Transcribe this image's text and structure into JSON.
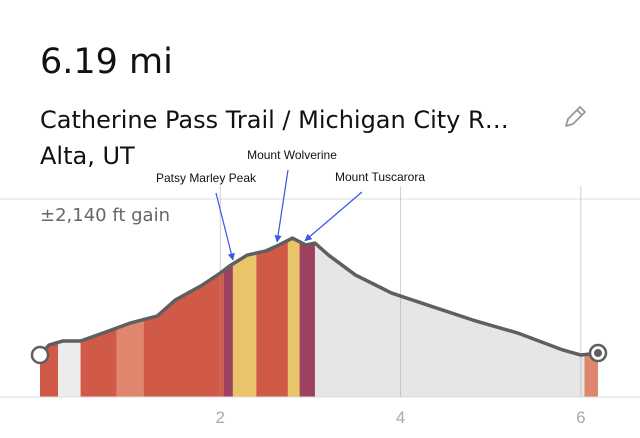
{
  "header": {
    "distance": "6.19 mi",
    "title": "Catherine Pass Trail / Michigan City R…",
    "location": "Alta, UT",
    "gain": "±2,140 ft gain"
  },
  "chart_data": {
    "type": "area",
    "x": [
      0,
      0.1,
      0.25,
      0.45,
      0.7,
      1.0,
      1.3,
      1.5,
      1.8,
      2.0,
      2.1,
      2.3,
      2.5,
      2.65,
      2.8,
      2.95,
      3.05,
      3.2,
      3.5,
      3.9,
      4.3,
      4.8,
      5.3,
      5.8,
      6.0,
      6.19
    ],
    "values": [
      8577,
      8714,
      8769,
      8769,
      8879,
      9016,
      9113,
      9332,
      9538,
      9703,
      9799,
      9951,
      10005,
      10088,
      10184,
      10088,
      10115,
      9951,
      9676,
      9429,
      9264,
      9058,
      8879,
      8646,
      8577,
      8604
    ],
    "xlim": [
      0,
      6.19
    ],
    "ylim": [
      8000,
      10900
    ],
    "xticks": [
      2,
      4,
      6
    ],
    "grid": true,
    "line_color": "#5f5f5f",
    "fill_color": "#e6e6e6",
    "segments": [
      {
        "start": 0,
        "end": 0.2,
        "color": "#d05a47"
      },
      {
        "start": 0.2,
        "end": 0.45,
        "color": "#ececec"
      },
      {
        "start": 0.45,
        "end": 0.85,
        "color": "#d05a47"
      },
      {
        "start": 0.85,
        "end": 1.15,
        "color": "#e0866f"
      },
      {
        "start": 1.15,
        "end": 2.04,
        "color": "#d05a47"
      },
      {
        "start": 2.04,
        "end": 2.14,
        "color": "#9c4160"
      },
      {
        "start": 2.14,
        "end": 2.4,
        "color": "#e9c46a"
      },
      {
        "start": 2.4,
        "end": 2.75,
        "color": "#d05a47"
      },
      {
        "start": 2.75,
        "end": 2.88,
        "color": "#e9c46a"
      },
      {
        "start": 2.88,
        "end": 3.05,
        "color": "#9c4160"
      },
      {
        "start": 6.04,
        "end": 6.19,
        "color": "#e0866f"
      }
    ],
    "annotations": [
      {
        "text": "Patsy Marley Peak",
        "x": 2.14
      },
      {
        "text": "Mount Wolverine",
        "x": 2.63
      },
      {
        "text": "Mount Tuscarora",
        "x": 2.94
      }
    ]
  }
}
